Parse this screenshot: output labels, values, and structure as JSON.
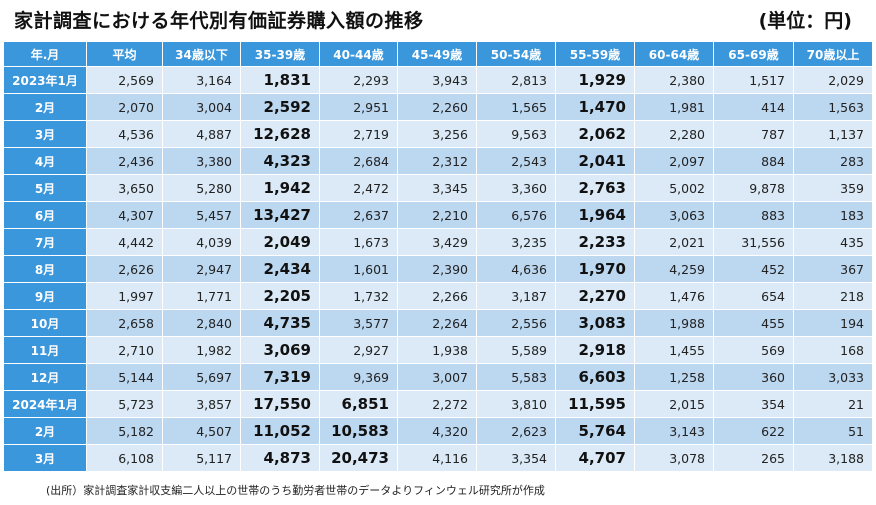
{
  "title": "家計調査における年代別有価証券購入額の推移",
  "unit": "(単位：円)",
  "table": {
    "headers": [
      "年.月",
      "平均",
      "34歳以下",
      "35-39歳",
      "40-44歳",
      "45-49歳",
      "50-54歳",
      "55-59歳",
      "60-64歳",
      "65-69歳",
      "70歳以上"
    ],
    "rows": [
      {
        "label": "2023年1月",
        "cells": [
          "2,569",
          "3,164",
          "1,831",
          "2,293",
          "3,943",
          "2,813",
          "1,929",
          "2,380",
          "1,517",
          "2,029"
        ]
      },
      {
        "label": "2月",
        "cells": [
          "2,070",
          "3,004",
          "2,592",
          "2,951",
          "2,260",
          "1,565",
          "1,470",
          "1,981",
          "414",
          "1,563"
        ]
      },
      {
        "label": "3月",
        "cells": [
          "4,536",
          "4,887",
          "12,628",
          "2,719",
          "3,256",
          "9,563",
          "2,062",
          "2,280",
          "787",
          "1,137"
        ]
      },
      {
        "label": "4月",
        "cells": [
          "2,436",
          "3,380",
          "4,323",
          "2,684",
          "2,312",
          "2,543",
          "2,041",
          "2,097",
          "884",
          "283"
        ]
      },
      {
        "label": "5月",
        "cells": [
          "3,650",
          "5,280",
          "1,942",
          "2,472",
          "3,345",
          "3,360",
          "2,763",
          "5,002",
          "9,878",
          "359"
        ]
      },
      {
        "label": "6月",
        "cells": [
          "4,307",
          "5,457",
          "13,427",
          "2,637",
          "2,210",
          "6,576",
          "1,964",
          "3,063",
          "883",
          "183"
        ]
      },
      {
        "label": "7月",
        "cells": [
          "4,442",
          "4,039",
          "2,049",
          "1,673",
          "3,429",
          "3,235",
          "2,233",
          "2,021",
          "31,556",
          "435"
        ]
      },
      {
        "label": "8月",
        "cells": [
          "2,626",
          "2,947",
          "2,434",
          "1,601",
          "2,390",
          "4,636",
          "1,970",
          "4,259",
          "452",
          "367"
        ]
      },
      {
        "label": "9月",
        "cells": [
          "1,997",
          "1,771",
          "2,205",
          "1,732",
          "2,266",
          "3,187",
          "2,270",
          "1,476",
          "654",
          "218"
        ]
      },
      {
        "label": "10月",
        "cells": [
          "2,658",
          "2,840",
          "4,735",
          "3,577",
          "2,264",
          "2,556",
          "3,083",
          "1,988",
          "455",
          "194"
        ]
      },
      {
        "label": "11月",
        "cells": [
          "2,710",
          "1,982",
          "3,069",
          "2,927",
          "1,938",
          "5,589",
          "2,918",
          "1,455",
          "569",
          "168"
        ]
      },
      {
        "label": "12月",
        "cells": [
          "5,144",
          "5,697",
          "7,319",
          "9,369",
          "3,007",
          "5,583",
          "6,603",
          "1,258",
          "360",
          "3,033"
        ]
      },
      {
        "label": "2024年1月",
        "cells": [
          "5,723",
          "3,857",
          "17,550",
          "6,851",
          "2,272",
          "3,810",
          "11,595",
          "2,015",
          "354",
          "21"
        ]
      },
      {
        "label": "2月",
        "cells": [
          "5,182",
          "4,507",
          "11,052",
          "10,583",
          "4,320",
          "2,623",
          "5,764",
          "3,143",
          "622",
          "51"
        ]
      },
      {
        "label": "3月",
        "cells": [
          "6,108",
          "5,117",
          "4,873",
          "20,473",
          "4,116",
          "3,354",
          "4,707",
          "3,078",
          "265",
          "3,188"
        ]
      }
    ]
  },
  "source": "(出所）家計調査家計収支編二人以上の世帯のうち勤労者世帯のデータよりフィンウェル研究所が作成"
}
